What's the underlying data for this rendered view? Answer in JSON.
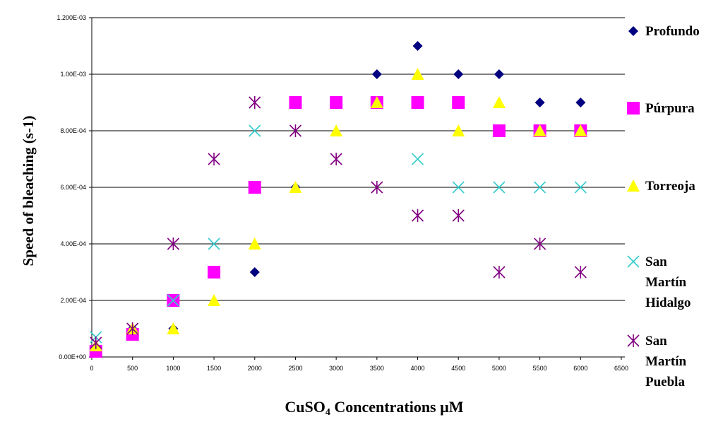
{
  "chart_data": {
    "type": "scatter",
    "title": "",
    "xlabel": "CuSO4 Concentrations µM",
    "xlabel_main": "CuSO",
    "xlabel_sub": "4",
    "xlabel_rest": " Concentrations µM",
    "ylabel": "Speed of bleaching (s-1)",
    "xlim": [
      0,
      6500
    ],
    "ylim": [
      0,
      0.0012
    ],
    "x_ticks": [
      0,
      500,
      1000,
      1500,
      2000,
      2500,
      3000,
      3500,
      4000,
      4500,
      5000,
      5500,
      6000,
      6500
    ],
    "x_tick_labels": [
      "0",
      "500",
      "1000",
      "1500",
      "2000",
      "2500",
      "3000",
      "3500",
      "4000",
      "4500",
      "5000",
      "5500",
      "6000",
      "6500"
    ],
    "y_ticks": [
      0,
      0.0002,
      0.0004,
      0.0006,
      0.0008,
      0.001,
      0.0012
    ],
    "y_tick_labels": [
      "0.00E+00",
      "2.00E-04",
      "4.00E-04",
      "6.00E-04",
      "8.00E-04",
      "1.00E-03",
      "1.200E-03"
    ],
    "grid": "horizontal",
    "legend_position": "right",
    "series": [
      {
        "name": "Profundo",
        "name_lines": [
          "Profundo"
        ],
        "marker": "diamond",
        "color": "#000080",
        "x": [
          50,
          500,
          1000,
          2000,
          2500,
          3500,
          4000,
          4500,
          5000,
          5500,
          6000
        ],
        "y": [
          3e-05,
          0.0001,
          0.0001,
          0.0003,
          0.0006,
          0.001,
          0.0011,
          0.001,
          0.001,
          0.0009,
          0.0009
        ]
      },
      {
        "name": "Púrpura",
        "name_lines": [
          "Púrpura"
        ],
        "marker": "square",
        "color": "#FF00FF",
        "x": [
          50,
          500,
          1000,
          1500,
          2000,
          2500,
          3000,
          3500,
          4000,
          4500,
          5000,
          5500,
          6000
        ],
        "y": [
          2e-05,
          8e-05,
          0.0002,
          0.0003,
          0.0006,
          0.0009,
          0.0009,
          0.0009,
          0.0009,
          0.0009,
          0.0008,
          0.0008,
          0.0008
        ]
      },
      {
        "name": "Torreoja",
        "name_lines": [
          "Torreoja"
        ],
        "marker": "triangle",
        "color": "#FFFF00",
        "x": [
          50,
          500,
          1000,
          1500,
          2000,
          2500,
          3000,
          3500,
          4000,
          4500,
          5000,
          5500,
          6000
        ],
        "y": [
          4e-05,
          0.0001,
          0.0001,
          0.0002,
          0.0004,
          0.0006,
          0.0008,
          0.0009,
          0.001,
          0.0008,
          0.0009,
          0.0008,
          0.0008
        ]
      },
      {
        "name": "San Martín Hidalgo",
        "name_lines": [
          "San",
          "Martín",
          "Hidalgo"
        ],
        "marker": "x",
        "color": "#33CCCC",
        "x": [
          50,
          1000,
          1500,
          2000,
          4000,
          4500,
          5000,
          5500,
          6000
        ],
        "y": [
          7e-05,
          0.0002,
          0.0004,
          0.0008,
          0.0007,
          0.0006,
          0.0006,
          0.0006,
          0.0006
        ]
      },
      {
        "name": "San Martín Puebla",
        "name_lines": [
          "San",
          "Martín",
          "Puebla"
        ],
        "marker": "star",
        "color": "#800080",
        "x": [
          50,
          500,
          1000,
          1500,
          2000,
          2500,
          3000,
          3500,
          4000,
          4500,
          5000,
          5500,
          6000
        ],
        "y": [
          5e-05,
          0.0001,
          0.0004,
          0.0007,
          0.0009,
          0.0008,
          0.0007,
          0.0006,
          0.0005,
          0.0005,
          0.0003,
          0.0004,
          0.0003
        ]
      }
    ]
  }
}
